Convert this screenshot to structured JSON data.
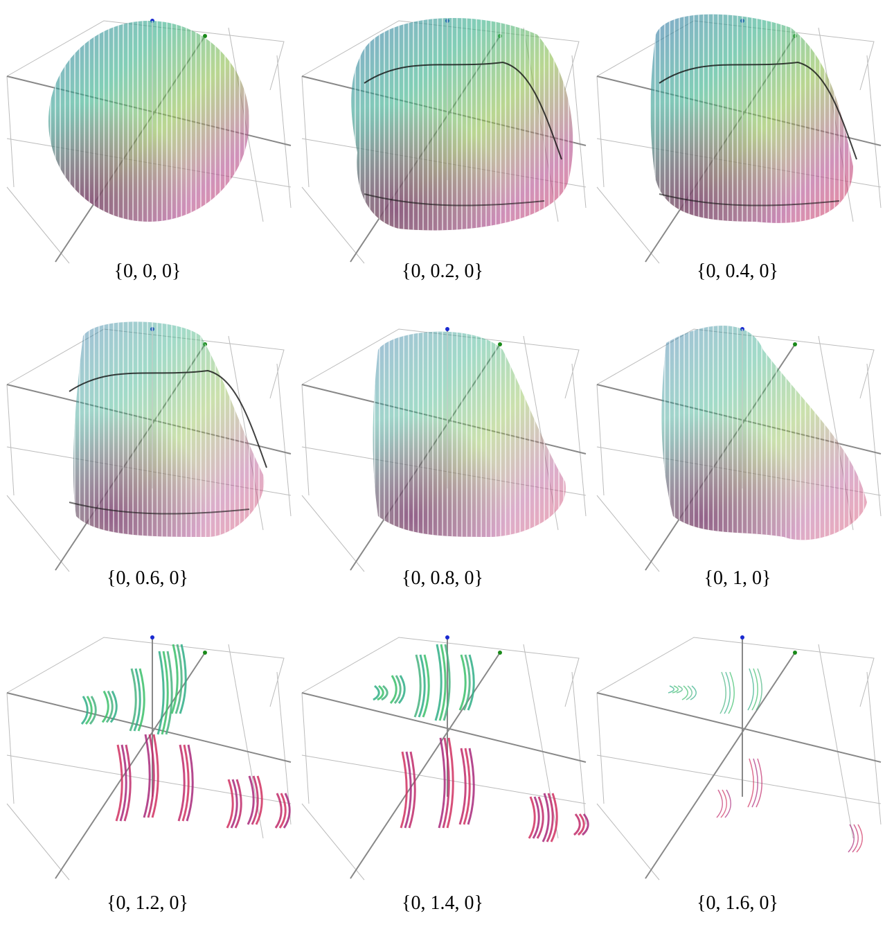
{
  "panels": [
    {
      "label": "{0, 0, 0}"
    },
    {
      "label": "{0, 0.2, 0}"
    },
    {
      "label": "{0, 0.4, 0}"
    },
    {
      "label": "{0, 0.6, 0}"
    },
    {
      "label": "{0, 0.8, 0}"
    },
    {
      "label": "{0, 1, 0}"
    },
    {
      "label": "{0, 1.2, 0}"
    },
    {
      "label": "{0, 1.4, 0}"
    },
    {
      "label": "{0, 1.6, 0}"
    }
  ]
}
